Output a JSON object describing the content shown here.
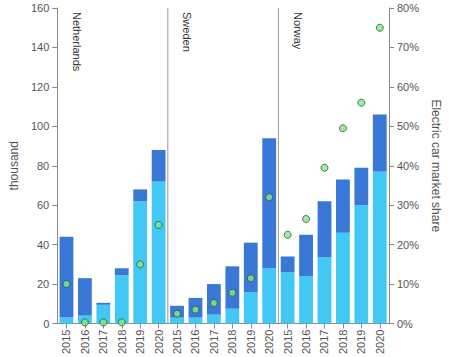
{
  "chart_data": {
    "type": "bar",
    "categories": [
      "2015",
      "2016",
      "2017",
      "2018",
      "2019",
      "2020",
      "2015",
      "2016",
      "2017",
      "2018",
      "2019",
      "2020",
      "2015",
      "2016",
      "2017",
      "2018",
      "2019",
      "2020"
    ],
    "annotations": [
      "Netherlands",
      "Sweden",
      "Norway"
    ],
    "y_label": "thousand",
    "y2_label": "Electric car market share",
    "stacked": true,
    "grid": false,
    "series": [
      {
        "type": "bar",
        "color": "#41c8f5",
        "values": [
          3,
          4,
          9.5,
          24.5,
          62,
          72,
          3,
          3,
          4.5,
          7.5,
          16,
          28,
          26,
          24,
          33.5,
          46,
          60,
          77
        ]
      },
      {
        "type": "bar",
        "color": "#3a78d8",
        "values": [
          41,
          19,
          1,
          3.5,
          6,
          16,
          6,
          10,
          15.5,
          21.5,
          25,
          66,
          8,
          21,
          28.5,
          27,
          19,
          29
        ]
      },
      {
        "type": "scatter",
        "axis": "y2",
        "marker": "circle",
        "color": "#86e886",
        "values": [
          10,
          0.3,
          0.3,
          0.3,
          15,
          25,
          2.5,
          3.5,
          5.2,
          7.8,
          11.5,
          32,
          22.5,
          26.5,
          39.5,
          49.5,
          56,
          75
        ]
      }
    ],
    "ylim": [
      0,
      160
    ],
    "yticks": [
      0,
      20,
      40,
      60,
      80,
      100,
      120,
      140,
      160
    ],
    "y2lim": [
      0,
      80
    ],
    "y2ticks": [
      {
        "value": 0,
        "label": "0%"
      },
      {
        "value": 10,
        "label": "10%"
      },
      {
        "value": 20,
        "label": "20%"
      },
      {
        "value": 30,
        "label": "30%"
      },
      {
        "value": 40,
        "label": "40%"
      },
      {
        "value": 50,
        "label": "50%"
      },
      {
        "value": 60,
        "label": "60%"
      },
      {
        "value": 70,
        "label": "70%"
      },
      {
        "value": 80,
        "label": "80%"
      }
    ]
  }
}
